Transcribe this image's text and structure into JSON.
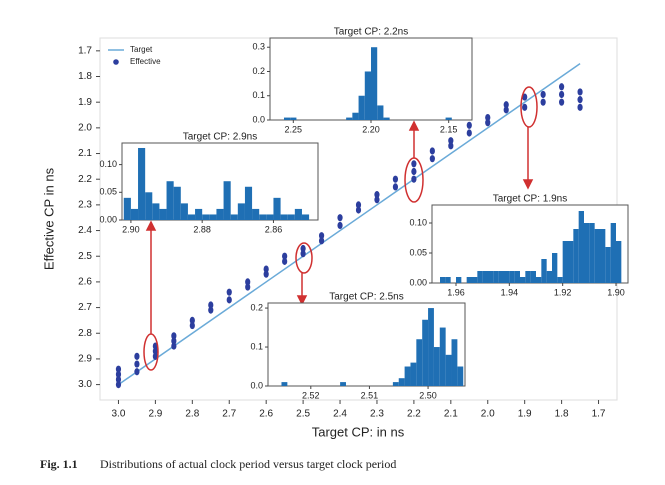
{
  "chart_data": [
    {
      "type": "scatter",
      "xlabel": "Target CP: in ns",
      "ylabel": "Effective CP in ns",
      "xlim": [
        3.05,
        1.65
      ],
      "ylim": [
        3.06,
        1.65
      ],
      "xticks": [
        {
          "value": 3.0,
          "label": "3.0"
        },
        2.9,
        2.8,
        2.7,
        2.6,
        2.5,
        2.4,
        2.3,
        2.2,
        2.1,
        {
          "value": 2.0,
          "label": "2.0"
        },
        1.9,
        1.8,
        1.7
      ],
      "yticks": [
        1.7,
        1.8,
        1.9,
        {
          "value": 2.0,
          "label": "2.0"
        },
        2.1,
        2.2,
        2.3,
        2.4,
        2.5,
        2.6,
        2.7,
        2.8,
        2.9,
        {
          "value": 3.0,
          "label": "3.0"
        }
      ],
      "legend": "upper left",
      "series": [
        {
          "name": "Target",
          "type": "line",
          "color": "#6aaad8",
          "x": [
            3.0,
            1.75
          ],
          "y": [
            3.0,
            1.75
          ]
        },
        {
          "name": "Effective",
          "type": "scatter",
          "color": "#2c3e9e",
          "x": [
            3.0,
            3.0,
            3.0,
            3.0,
            2.95,
            2.95,
            2.95,
            2.9,
            2.9,
            2.9,
            2.85,
            2.85,
            2.85,
            2.8,
            2.8,
            2.75,
            2.75,
            2.7,
            2.7,
            2.65,
            2.65,
            2.6,
            2.6,
            2.55,
            2.55,
            2.5,
            2.5,
            2.45,
            2.45,
            2.4,
            2.4,
            2.35,
            2.35,
            2.3,
            2.3,
            2.25,
            2.25,
            2.2,
            2.2,
            2.2,
            2.15,
            2.15,
            2.1,
            2.1,
            2.05,
            2.05,
            2.0,
            2.0,
            1.95,
            1.95,
            1.9,
            1.9,
            1.85,
            1.85,
            1.8,
            1.8,
            1.8,
            1.75,
            1.75,
            1.75
          ],
          "y": [
            2.94,
            2.96,
            2.98,
            3.0,
            2.89,
            2.92,
            2.95,
            2.85,
            2.87,
            2.89,
            2.81,
            2.83,
            2.85,
            2.75,
            2.77,
            2.69,
            2.71,
            2.64,
            2.67,
            2.6,
            2.62,
            2.55,
            2.57,
            2.5,
            2.52,
            2.47,
            2.49,
            2.42,
            2.44,
            2.35,
            2.38,
            2.3,
            2.32,
            2.26,
            2.28,
            2.2,
            2.23,
            2.14,
            2.17,
            2.2,
            2.09,
            2.12,
            2.05,
            2.07,
            1.99,
            2.02,
            1.96,
            1.98,
            1.91,
            1.93,
            1.88,
            1.92,
            1.87,
            1.9,
            1.84,
            1.87,
            1.9,
            1.86,
            1.89,
            1.92
          ]
        }
      ]
    },
    {
      "type": "histogram",
      "title": "Target CP: 2.2ns",
      "color": "#1f6fb4",
      "xlim": [
        2.265,
        2.135
      ],
      "ylim": [
        0,
        0.338
      ],
      "xticks": [
        2.25,
        {
          "value": 2.2,
          "label": "2.20"
        },
        2.15
      ],
      "yticks": [
        {
          "value": 0,
          "label": "0.0"
        },
        0.1,
        0.2,
        0.3
      ],
      "bins": [
        2.256,
        2.252,
        2.248,
        2.244,
        2.24,
        2.236,
        2.232,
        2.228,
        2.224,
        2.22,
        2.216,
        2.212,
        2.208,
        2.204,
        2.2,
        2.196,
        2.192,
        2.188,
        2.184,
        2.18,
        2.176,
        2.172,
        2.168,
        2.164,
        2.16,
        2.156,
        2.152,
        2.148,
        2.144
      ],
      "counts": [
        0.01,
        0.01,
        0,
        0,
        0,
        0,
        0,
        0,
        0,
        0,
        0.01,
        0.03,
        0.1,
        0.2,
        0.3,
        0.06,
        0.01,
        0,
        0,
        0,
        0,
        0,
        0,
        0,
        0,
        0,
        0.01,
        0
      ]
    },
    {
      "type": "histogram",
      "title": "Target CP: 2.9ns",
      "color": "#1f6fb4",
      "xlim": [
        2.9025,
        2.8475
      ],
      "ylim": [
        0,
        0.139
      ],
      "xticks": [
        {
          "value": 2.9,
          "label": "2.90"
        },
        2.88,
        2.86
      ],
      "yticks": [
        {
          "value": 0,
          "label": "0.00"
        },
        0.05,
        {
          "value": 0.1,
          "label": "0.10"
        }
      ],
      "bins": [
        2.902,
        2.9,
        2.898,
        2.896,
        2.894,
        2.892,
        2.89,
        2.888,
        2.886,
        2.884,
        2.882,
        2.88,
        2.878,
        2.876,
        2.874,
        2.872,
        2.87,
        2.868,
        2.866,
        2.864,
        2.862,
        2.86,
        2.858,
        2.856,
        2.854,
        2.852,
        2.85
      ],
      "counts": [
        0.04,
        0.02,
        0.13,
        0.05,
        0.03,
        0.02,
        0.07,
        0.06,
        0.03,
        0.01,
        0.02,
        0.01,
        0.01,
        0.02,
        0.07,
        0.01,
        0.03,
        0.06,
        0.02,
        0.01,
        0.01,
        0.04,
        0.01,
        0.01,
        0.02,
        0.01
      ]
    },
    {
      "type": "histogram",
      "title": "Target CP: 1.9ns",
      "color": "#1f6fb4",
      "xlim": [
        1.969,
        1.8955
      ],
      "ylim": [
        0,
        0.13
      ],
      "xticks": [
        1.96,
        1.94,
        1.92,
        {
          "value": 1.9,
          "label": "1.90"
        }
      ],
      "yticks": [
        {
          "value": 0,
          "label": "0.00"
        },
        0.05,
        {
          "value": 0.1,
          "label": "0.10"
        }
      ],
      "bins": [
        1.966,
        1.964,
        1.962,
        1.96,
        1.958,
        1.956,
        1.954,
        1.952,
        1.95,
        1.948,
        1.946,
        1.944,
        1.942,
        1.94,
        1.938,
        1.936,
        1.934,
        1.932,
        1.93,
        1.928,
        1.926,
        1.924,
        1.922,
        1.92,
        1.918,
        1.916,
        1.914,
        1.912,
        1.91,
        1.908,
        1.906,
        1.904,
        1.902,
        1.9,
        1.898
      ],
      "counts": [
        0.01,
        0.01,
        0,
        0.01,
        0,
        0.01,
        0.01,
        0.02,
        0.02,
        0.02,
        0.02,
        0.02,
        0.02,
        0.02,
        0.02,
        0.01,
        0.02,
        0.02,
        0.01,
        0.04,
        0.02,
        0.05,
        0.01,
        0.07,
        0.07,
        0.09,
        0.12,
        0.1,
        0.1,
        0.09,
        0.09,
        0.06,
        0.1,
        0.07
      ]
    },
    {
      "type": "histogram",
      "title": "Target CP: 2.5ns",
      "color": "#1f6fb4",
      "xlim": [
        2.5273,
        2.4937
      ],
      "ylim": [
        0,
        0.213
      ],
      "xticks": [
        2.52,
        2.51,
        {
          "value": 2.5,
          "label": "2.50"
        }
      ],
      "yticks": [
        {
          "value": 0,
          "label": "0.0"
        },
        0.1,
        0.2
      ],
      "bins": [
        2.525,
        2.524,
        2.523,
        2.522,
        2.521,
        2.52,
        2.519,
        2.518,
        2.517,
        2.516,
        2.515,
        2.514,
        2.513,
        2.512,
        2.511,
        2.51,
        2.509,
        2.508,
        2.507,
        2.506,
        2.505,
        2.504,
        2.503,
        2.502,
        2.501,
        2.5,
        2.499,
        2.498,
        2.497,
        2.496,
        2.495,
        2.494
      ],
      "counts": [
        0.01,
        0,
        0,
        0,
        0,
        0,
        0,
        0,
        0,
        0,
        0.01,
        0,
        0,
        0,
        0,
        0,
        0,
        0,
        0,
        0.01,
        0.02,
        0.05,
        0.06,
        0.12,
        0.17,
        0.2,
        0.1,
        0.15,
        0.08,
        0.12,
        0.05
      ]
    }
  ],
  "caption": {
    "label": "Fig. 1.1",
    "text": "Distributions of actual clock period versus target clock period"
  }
}
